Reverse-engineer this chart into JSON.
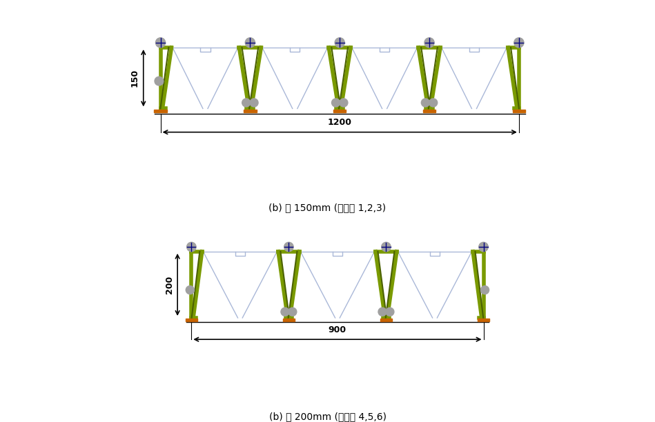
{
  "fig_width": 9.49,
  "fig_height": 6.12,
  "bg_color": "#ffffff",
  "deck_color_blue": "#aab8d8",
  "green_color": "#7a9a00",
  "dark_green": "#4a6000",
  "orange_color": "#c86400",
  "gray_circle": "#a0a0a0",
  "dark_line": "#000000",
  "navy": "#000080",
  "caption1": "(b) 춤 150mm (실험체 1,2,3)",
  "caption2": "(b) 춤 200mm (실험체 4,5,6)",
  "dim1_label": "150",
  "dim2_label": "1200",
  "dim3_label": "200",
  "dim4_label": "900",
  "lw_green": 4.0,
  "lw_thin": 1.5,
  "lw_blue": 1.0
}
